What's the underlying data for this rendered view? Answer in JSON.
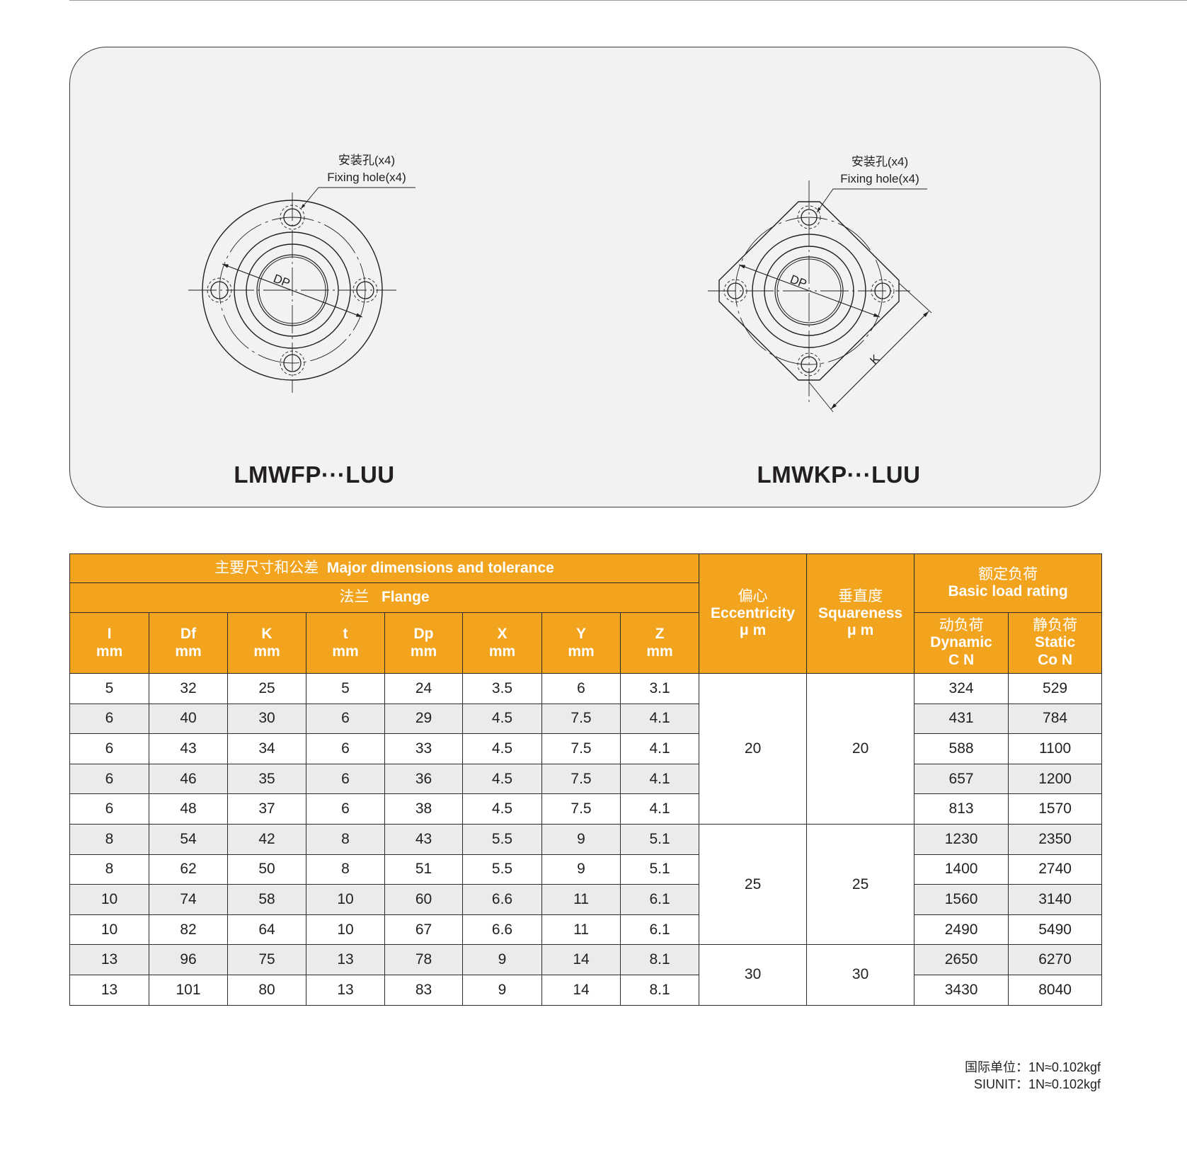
{
  "drawings": {
    "left": {
      "model": "LMWFP···LUU",
      "hole_label_cn": "安装孔(x4)",
      "hole_label_en": "Fixing hole(x4)",
      "dim_label": "DP"
    },
    "right": {
      "model": "LMWKP···LUU",
      "hole_label_cn": "安装孔(x4)",
      "hole_label_en": "Fixing hole(x4)",
      "dim_label": "DP",
      "k_label": "K"
    }
  },
  "table": {
    "header": {
      "major_cn": "主要尺寸和公差",
      "major_en": "Major dimensions and tolerance",
      "flange_cn": "法兰",
      "flange_en": "Flange",
      "columns": [
        {
          "name": "I",
          "unit": "mm"
        },
        {
          "name": "Df",
          "unit": "mm"
        },
        {
          "name": "K",
          "unit": "mm"
        },
        {
          "name": "t",
          "unit": "mm"
        },
        {
          "name": "Dp",
          "unit": "mm"
        },
        {
          "name": "X",
          "unit": "mm"
        },
        {
          "name": "Y",
          "unit": "mm"
        },
        {
          "name": "Z",
          "unit": "mm"
        }
      ],
      "eccentricity_cn": "偏心",
      "eccentricity_en": "Eccentricity",
      "eccentricity_unit": "μ m",
      "squareness_cn": "垂直度",
      "squareness_en": "Squareness",
      "squareness_unit": "μ m",
      "load_cn": "额定负荷",
      "load_en": "Basic load rating",
      "dynamic_cn": "动负荷",
      "dynamic_en": "Dynamic",
      "dynamic_unit": "C N",
      "static_cn": "静负荷",
      "static_en": "Static",
      "static_unit": "Co N"
    },
    "rows": [
      {
        "I": "5",
        "Df": "32",
        "K": "25",
        "t": "5",
        "Dp": "24",
        "X": "3.5",
        "Y": "6",
        "Z": "3.1",
        "C": "324",
        "Co": "529"
      },
      {
        "I": "6",
        "Df": "40",
        "K": "30",
        "t": "6",
        "Dp": "29",
        "X": "4.5",
        "Y": "7.5",
        "Z": "4.1",
        "C": "431",
        "Co": "784"
      },
      {
        "I": "6",
        "Df": "43",
        "K": "34",
        "t": "6",
        "Dp": "33",
        "X": "4.5",
        "Y": "7.5",
        "Z": "4.1",
        "C": "588",
        "Co": "1100"
      },
      {
        "I": "6",
        "Df": "46",
        "K": "35",
        "t": "6",
        "Dp": "36",
        "X": "4.5",
        "Y": "7.5",
        "Z": "4.1",
        "C": "657",
        "Co": "1200"
      },
      {
        "I": "6",
        "Df": "48",
        "K": "37",
        "t": "6",
        "Dp": "38",
        "X": "4.5",
        "Y": "7.5",
        "Z": "4.1",
        "C": "813",
        "Co": "1570"
      },
      {
        "I": "8",
        "Df": "54",
        "K": "42",
        "t": "8",
        "Dp": "43",
        "X": "5.5",
        "Y": "9",
        "Z": "5.1",
        "C": "1230",
        "Co": "2350"
      },
      {
        "I": "8",
        "Df": "62",
        "K": "50",
        "t": "8",
        "Dp": "51",
        "X": "5.5",
        "Y": "9",
        "Z": "5.1",
        "C": "1400",
        "Co": "2740"
      },
      {
        "I": "10",
        "Df": "74",
        "K": "58",
        "t": "10",
        "Dp": "60",
        "X": "6.6",
        "Y": "11",
        "Z": "6.1",
        "C": "1560",
        "Co": "3140"
      },
      {
        "I": "10",
        "Df": "82",
        "K": "64",
        "t": "10",
        "Dp": "67",
        "X": "6.6",
        "Y": "11",
        "Z": "6.1",
        "C": "2490",
        "Co": "5490"
      },
      {
        "I": "13",
        "Df": "96",
        "K": "75",
        "t": "13",
        "Dp": "78",
        "X": "9",
        "Y": "14",
        "Z": "8.1",
        "C": "2650",
        "Co": "6270"
      },
      {
        "I": "13",
        "Df": "101",
        "K": "80",
        "t": "13",
        "Dp": "83",
        "X": "9",
        "Y": "14",
        "Z": "8.1",
        "C": "3430",
        "Co": "8040"
      }
    ],
    "groups": [
      {
        "rows": 5,
        "eccentricity": "20",
        "squareness": "20"
      },
      {
        "rows": 4,
        "eccentricity": "25",
        "squareness": "25"
      },
      {
        "rows": 2,
        "eccentricity": "30",
        "squareness": "30"
      }
    ]
  },
  "footnote": {
    "line1": "国际单位：1N≈0.102kgf",
    "line2": "SIUNIT：1N≈0.102kgf"
  },
  "colors": {
    "header_bg": "#f3a41f",
    "alt_row": "#ebebeb",
    "panel_bg": "#f1f2f2"
  }
}
